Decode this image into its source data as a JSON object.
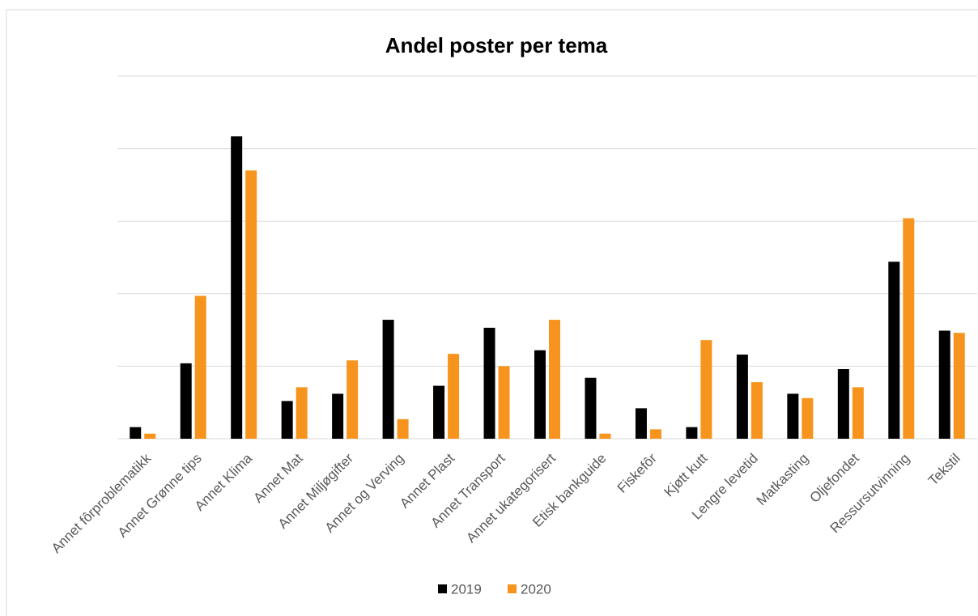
{
  "chart_data": {
    "type": "bar",
    "title": "Andel poster per tema",
    "categories": [
      "Annet fôrproblematikk",
      "Annet Grønne tips",
      "Annet Klima",
      "Annet Mat",
      "Annet Miljøgifter",
      "Annet og Verving",
      "Annet Plast",
      "Annet Transport",
      "Annet ukategorisert",
      "Etisk bankguide",
      "Fiskefôr",
      "Kjøtt kutt",
      "Lengre levetid",
      "Matkasting",
      "Oljefondet",
      "Ressursutvinning",
      "Tekstil"
    ],
    "series": [
      {
        "name": "2019",
        "color": "#000000",
        "values": [
          0.16,
          1.04,
          4.17,
          0.52,
          0.62,
          1.64,
          0.73,
          1.53,
          1.22,
          0.84,
          0.42,
          0.16,
          1.16,
          0.62,
          0.96,
          2.44,
          1.49
        ]
      },
      {
        "name": "2020",
        "color": "#f7941d",
        "values": [
          0.07,
          1.97,
          3.7,
          0.71,
          1.08,
          0.27,
          1.17,
          1.0,
          1.64,
          0.07,
          0.13,
          1.36,
          0.78,
          0.56,
          0.71,
          3.04,
          1.46
        ]
      }
    ],
    "ylim": [
      0,
      5
    ],
    "yticks": [
      0,
      1,
      2,
      3,
      4,
      5
    ],
    "grid": true,
    "legend": "bottom"
  }
}
